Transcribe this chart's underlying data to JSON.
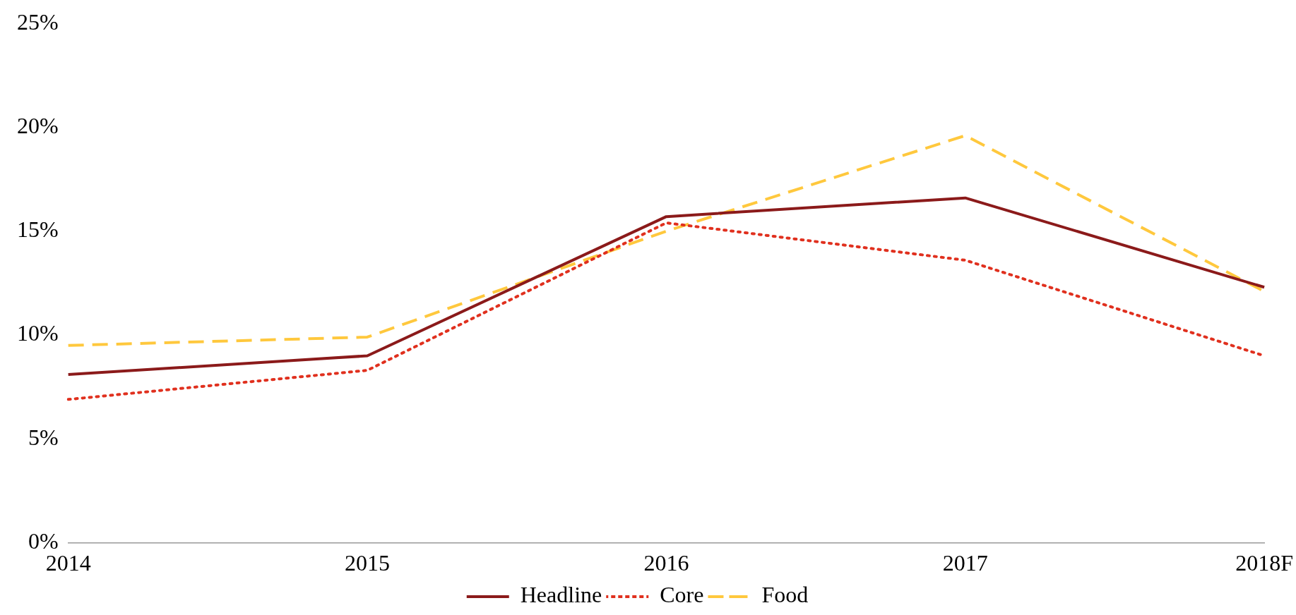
{
  "chart_data": {
    "type": "line",
    "categories": [
      "2014",
      "2015",
      "2016",
      "2017",
      "2018F"
    ],
    "series": [
      {
        "name": "Headline",
        "color": "#8b1a1a",
        "line_style": "solid",
        "values": [
          8.1,
          9.0,
          15.7,
          16.6,
          12.3
        ]
      },
      {
        "name": "Core",
        "color": "#e0301e",
        "line_style": "dotted",
        "values": [
          6.9,
          8.3,
          15.4,
          13.6,
          9.0
        ]
      },
      {
        "name": "Food",
        "color": "#ffc83d",
        "line_style": "dashed",
        "values": [
          9.5,
          9.9,
          15.0,
          19.6,
          12.1
        ]
      }
    ],
    "ylim": [
      0,
      25
    ],
    "yticks": [
      {
        "value": 0,
        "label": "0%"
      },
      {
        "value": 5,
        "label": "5%"
      },
      {
        "value": 10,
        "label": "10%"
      },
      {
        "value": 15,
        "label": "15%"
      },
      {
        "value": 20,
        "label": "20%"
      },
      {
        "value": 25,
        "label": "25%"
      }
    ],
    "grid": false,
    "legend": "bottom",
    "marker": "none"
  }
}
